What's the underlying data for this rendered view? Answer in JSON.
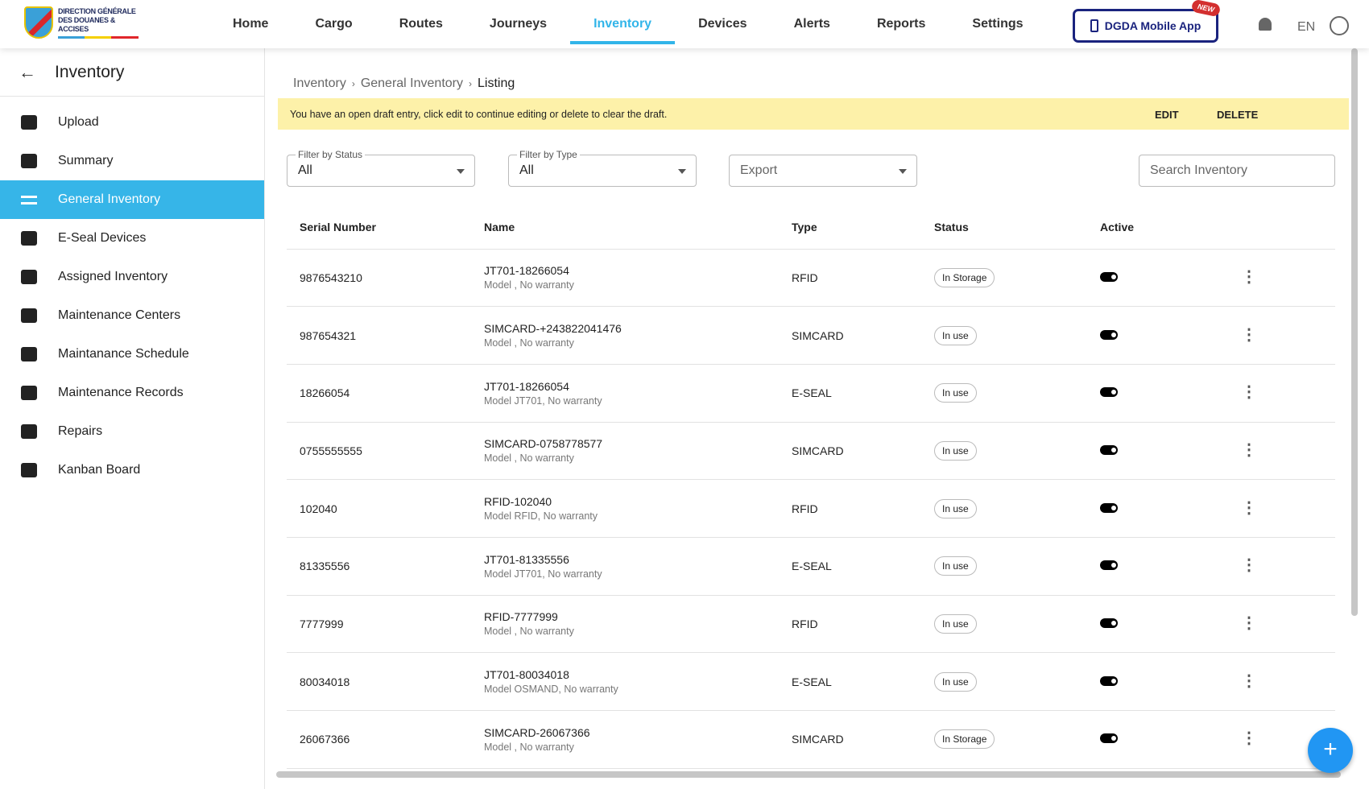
{
  "header": {
    "logo_text": "DIRECTION GÉNÉRALE DES DOUANES & ACCISES",
    "nav": [
      "Home",
      "Cargo",
      "Routes",
      "Journeys",
      "Inventory",
      "Devices",
      "Alerts",
      "Reports",
      "Settings"
    ],
    "active_nav": "Inventory",
    "mobile_app": "DGDA Mobile App",
    "new_badge": "NEW",
    "language": "EN",
    "accent": "#32b5e9"
  },
  "sidebar": {
    "title": "Inventory",
    "items": [
      {
        "label": "Upload",
        "icon": "cloud-upload-icon"
      },
      {
        "label": "Summary",
        "icon": "document-icon"
      },
      {
        "label": "General Inventory",
        "icon": "list-icon",
        "active": true
      },
      {
        "label": "E-Seal Devices",
        "icon": "lock-icon"
      },
      {
        "label": "Assigned Inventory",
        "icon": "badge-icon"
      },
      {
        "label": "Maintenance Centers",
        "icon": "robot-arm-icon"
      },
      {
        "label": "Maintanance Schedule",
        "icon": "engineer-icon"
      },
      {
        "label": "Maintenance Records",
        "icon": "calendar-check-icon"
      },
      {
        "label": "Repairs",
        "icon": "tools-icon"
      },
      {
        "label": "Kanban Board",
        "icon": "kanban-icon"
      }
    ]
  },
  "breadcrumb": [
    "Inventory",
    "General Inventory",
    "Listing"
  ],
  "banner": {
    "text": "You have an open draft entry, click edit to continue editing or delete to clear the draft.",
    "edit": "EDIT",
    "delete": "DELETE"
  },
  "filters": {
    "status_label": "Filter by Status",
    "status_value": "All",
    "type_label": "Filter by Type",
    "type_value": "All",
    "export": "Export",
    "search_placeholder": "Search Inventory"
  },
  "table": {
    "columns": [
      "Serial Number",
      "Name",
      "Type",
      "Status",
      "Active"
    ],
    "rows": [
      {
        "serial": "9876543210",
        "name": "JT701-18266054",
        "sub": "Model , No warranty",
        "type": "RFID",
        "status": "In Storage",
        "active": true
      },
      {
        "serial": "987654321",
        "name": "SIMCARD-+243822041476",
        "sub": "Model , No warranty",
        "type": "SIMCARD",
        "status": "In use",
        "active": true
      },
      {
        "serial": "18266054",
        "name": "JT701-18266054",
        "sub": "Model JT701, No warranty",
        "type": "E-SEAL",
        "status": "In use",
        "active": true
      },
      {
        "serial": "0755555555",
        "name": "SIMCARD-0758778577",
        "sub": "Model , No warranty",
        "type": "SIMCARD",
        "status": "In use",
        "active": true
      },
      {
        "serial": "102040",
        "name": "RFID-102040",
        "sub": "Model RFID, No warranty",
        "type": "RFID",
        "status": "In use",
        "active": true
      },
      {
        "serial": "81335556",
        "name": "JT701-81335556",
        "sub": "Model JT701, No warranty",
        "type": "E-SEAL",
        "status": "In use",
        "active": true
      },
      {
        "serial": "7777999",
        "name": "RFID-7777999",
        "sub": "Model , No warranty",
        "type": "RFID",
        "status": "In use",
        "active": true
      },
      {
        "serial": "80034018",
        "name": "JT701-80034018",
        "sub": "Model OSMAND, No warranty",
        "type": "E-SEAL",
        "status": "In use",
        "active": true
      },
      {
        "serial": "26067366",
        "name": "SIMCARD-26067366",
        "sub": "Model , No warranty",
        "type": "SIMCARD",
        "status": "In Storage",
        "active": true
      }
    ]
  },
  "fab": "+"
}
